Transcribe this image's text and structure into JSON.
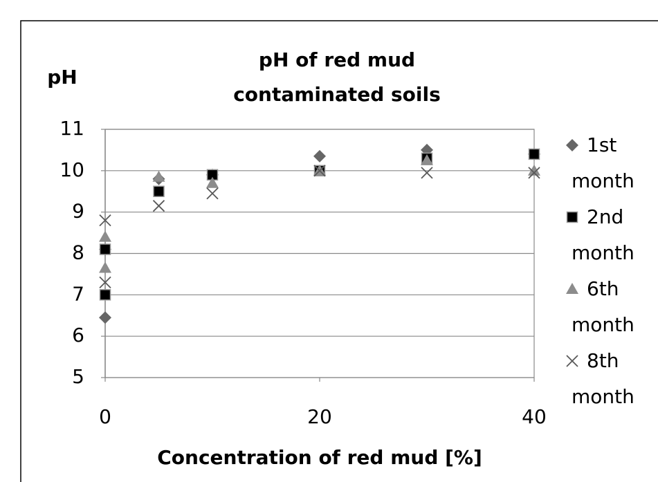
{
  "chart_data": {
    "type": "scatter",
    "title": "pH of red mud contaminated soils",
    "y_label": "pH",
    "x_label": "Concentration of red mud [%]",
    "xlim": [
      0,
      40
    ],
    "xticks": [
      0,
      20,
      40
    ],
    "ylim": [
      5,
      11
    ],
    "yticks": [
      5,
      6,
      7,
      8,
      9,
      10,
      11
    ],
    "grid": true,
    "legend": "right",
    "x": [
      0,
      0,
      5,
      10,
      20,
      30,
      40
    ],
    "series": [
      {
        "name": "1st month",
        "color": "#666666",
        "marker": "diamond",
        "values": [
          6.45,
          8.1,
          9.8,
          9.9,
          10.35,
          10.5,
          10.4
        ]
      },
      {
        "name": "2nd month",
        "color": "#000000",
        "marker": "square",
        "values": [
          7.0,
          8.1,
          9.5,
          9.9,
          10.0,
          10.3,
          10.4
        ]
      },
      {
        "name": "6th month",
        "color": "#8c8c8c",
        "marker": "triangle",
        "values": [
          7.65,
          8.4,
          9.85,
          9.7,
          10.0,
          10.25,
          10.0
        ]
      },
      {
        "name": "8th month",
        "color": "#595959",
        "marker": "x",
        "values": [
          7.3,
          8.8,
          9.15,
          9.45,
          10.0,
          9.95,
          9.95
        ]
      }
    ]
  }
}
